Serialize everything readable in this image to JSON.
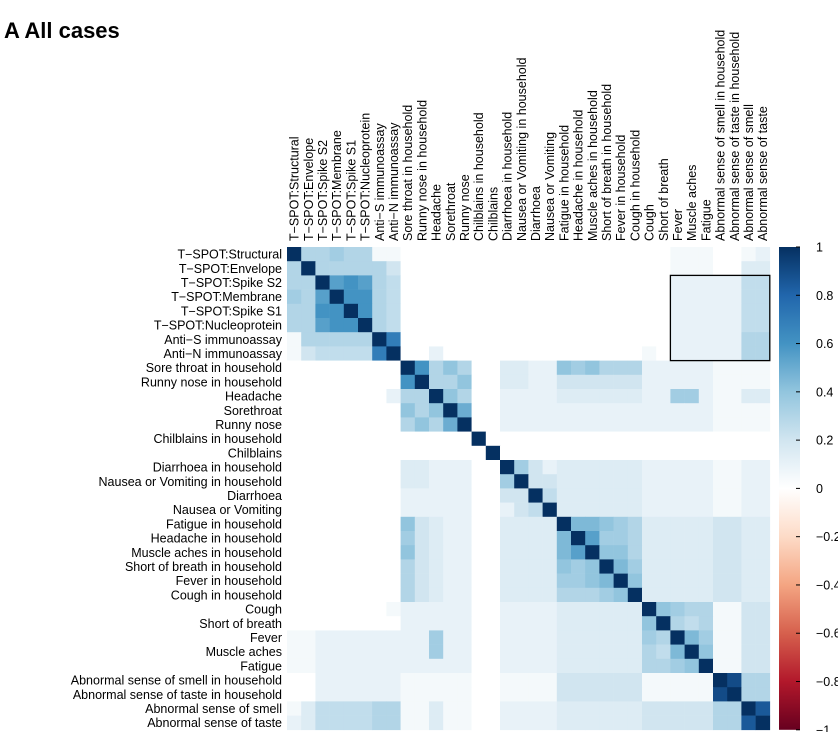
{
  "chart_data": {
    "type": "heatmap",
    "title": "A All cases",
    "labels": [
      "T−SPOT:Structural",
      "T−SPOT:Envelope",
      "T−SPOT:Spike S2",
      "T−SPOT:Membrane",
      "T−SPOT:Spike S1",
      "T−SPOT:Nucleoprotein",
      "Anti−S immunoassay",
      "Anti−N immunoassay",
      "Sore throat in household",
      "Runny nose in household",
      "Headache",
      "Sorethroat",
      "Runny nose",
      "Chilblains in household",
      "Chilblains",
      "Diarrhoea in household",
      "Nausea or Vomiting in household",
      "Diarrhoea",
      "Nausea or Vomiting",
      "Fatigue in household",
      "Headache in household",
      "Muscle aches in household",
      "Short of breath in household",
      "Fever in household",
      "Cough in household",
      "Cough",
      "Short of breath",
      "Fever",
      "Muscle aches",
      "Fatigue",
      "Abnormal sense of smell in household",
      "Abnormal sense of taste in household",
      "Abnormal sense of smell",
      "Abnormal sense of taste"
    ],
    "matrix": [
      [
        1,
        0.3,
        0.3,
        0.35,
        0.3,
        0.3,
        0.05,
        0.05,
        0,
        0,
        0,
        0,
        0,
        0,
        0,
        0,
        0,
        0,
        0,
        0,
        0,
        0,
        0,
        0,
        0,
        0,
        0,
        0.05,
        0.05,
        0.05,
        0,
        0,
        0.05,
        0.1
      ],
      [
        0.3,
        1,
        0.3,
        0.3,
        0.3,
        0.3,
        0.3,
        0.2,
        0,
        0,
        0,
        0,
        0,
        0,
        0,
        0,
        0,
        0,
        0,
        0,
        0,
        0,
        0,
        0,
        0,
        0,
        0,
        0.05,
        0.05,
        0.05,
        0,
        0,
        0.15,
        0.15
      ],
      [
        0.3,
        0.3,
        1,
        0.55,
        0.6,
        0.55,
        0.3,
        0.25,
        0,
        0,
        0,
        0,
        0,
        0,
        0,
        0,
        0,
        0,
        0,
        0,
        0,
        0,
        0,
        0,
        0,
        0,
        0,
        0.1,
        0.1,
        0.1,
        0.1,
        0.1,
        0.25,
        0.25
      ],
      [
        0.35,
        0.3,
        0.55,
        1,
        0.6,
        0.6,
        0.3,
        0.25,
        0,
        0,
        0,
        0,
        0,
        0,
        0,
        0,
        0,
        0,
        0,
        0,
        0,
        0,
        0,
        0,
        0,
        0,
        0,
        0.1,
        0.1,
        0.1,
        0.1,
        0.1,
        0.25,
        0.25
      ],
      [
        0.3,
        0.3,
        0.6,
        0.6,
        1,
        0.6,
        0.3,
        0.25,
        0,
        0,
        0,
        0,
        0,
        0,
        0,
        0,
        0,
        0,
        0,
        0,
        0,
        0,
        0,
        0,
        0,
        0,
        0,
        0.1,
        0.1,
        0.1,
        0.1,
        0.1,
        0.25,
        0.25
      ],
      [
        0.3,
        0.3,
        0.55,
        0.6,
        0.6,
        1,
        0.3,
        0.25,
        0,
        0,
        0,
        0,
        0,
        0,
        0,
        0,
        0,
        0,
        0,
        0,
        0,
        0,
        0,
        0,
        0,
        0,
        0,
        0.1,
        0.1,
        0.1,
        0.1,
        0.1,
        0.25,
        0.25
      ],
      [
        0.05,
        0.3,
        0.3,
        0.3,
        0.3,
        0.3,
        1,
        0.7,
        0,
        0,
        0,
        0,
        0,
        0,
        0,
        0,
        0,
        0,
        0,
        0,
        0,
        0,
        0,
        0,
        0,
        0,
        0,
        0.1,
        0.1,
        0.1,
        0.1,
        0.1,
        0.3,
        0.3
      ],
      [
        0.05,
        0.2,
        0.25,
        0.25,
        0.25,
        0.25,
        0.7,
        1,
        0,
        0,
        0.1,
        0,
        0,
        0,
        0,
        0,
        0,
        0,
        0,
        0,
        0,
        0,
        0,
        0,
        0,
        0.05,
        0,
        0.1,
        0.1,
        0.1,
        0.1,
        0.1,
        0.3,
        0.3
      ],
      [
        0,
        0,
        0,
        0,
        0,
        0,
        0,
        0,
        1,
        0.6,
        0.3,
        0.4,
        0.3,
        0,
        0,
        0.15,
        0.15,
        0.1,
        0.1,
        0.4,
        0.35,
        0.4,
        0.3,
        0.3,
        0.3,
        0.1,
        0.1,
        0.1,
        0.1,
        0.1,
        0.05,
        0.05,
        0.05,
        0.05
      ],
      [
        0,
        0,
        0,
        0,
        0,
        0,
        0,
        0,
        0.6,
        1,
        0.3,
        0.3,
        0.4,
        0,
        0,
        0.15,
        0.15,
        0.1,
        0.1,
        0.2,
        0.2,
        0.2,
        0.2,
        0.2,
        0.2,
        0.1,
        0.1,
        0.1,
        0.1,
        0.1,
        0.05,
        0.05,
        0.05,
        0.05
      ],
      [
        0,
        0,
        0,
        0,
        0,
        0,
        0,
        0.1,
        0.3,
        0.3,
        1,
        0.4,
        0.3,
        0,
        0,
        0.1,
        0.1,
        0.1,
        0.1,
        0.15,
        0.15,
        0.15,
        0.15,
        0.15,
        0.15,
        0.1,
        0.1,
        0.35,
        0.35,
        0.1,
        0.05,
        0.05,
        0.15,
        0.15
      ],
      [
        0,
        0,
        0,
        0,
        0,
        0,
        0,
        0,
        0.4,
        0.3,
        0.4,
        1,
        0.5,
        0,
        0,
        0.1,
        0.1,
        0.1,
        0.1,
        0.1,
        0.1,
        0.1,
        0.1,
        0.1,
        0.1,
        0.1,
        0.1,
        0.1,
        0.1,
        0.1,
        0.05,
        0.05,
        0.05,
        0.05
      ],
      [
        0,
        0,
        0,
        0,
        0,
        0,
        0,
        0,
        0.3,
        0.4,
        0.3,
        0.5,
        1,
        0,
        0,
        0.1,
        0.1,
        0.1,
        0.1,
        0.1,
        0.1,
        0.1,
        0.1,
        0.1,
        0.1,
        0.1,
        0.1,
        0.1,
        0.1,
        0.1,
        0.05,
        0.05,
        0.05,
        0.05
      ],
      [
        0,
        0,
        0,
        0,
        0,
        0,
        0,
        0,
        0,
        0,
        0,
        0,
        0,
        1,
        0,
        0,
        0,
        0,
        0,
        0,
        0,
        0,
        0,
        0,
        0,
        0,
        0,
        0,
        0,
        0,
        0,
        0,
        0,
        0
      ],
      [
        0,
        0,
        0,
        0,
        0,
        0,
        0,
        0,
        0,
        0,
        0,
        0,
        0,
        0,
        1,
        0,
        0,
        0,
        0,
        0,
        0,
        0,
        0,
        0,
        0,
        0,
        0,
        0,
        0,
        0,
        0,
        0,
        0,
        0
      ],
      [
        0,
        0,
        0,
        0,
        0,
        0,
        0,
        0,
        0.15,
        0.15,
        0.1,
        0.1,
        0.1,
        0,
        0,
        1,
        0.35,
        0.2,
        0.1,
        0.15,
        0.15,
        0.15,
        0.15,
        0.15,
        0.15,
        0.1,
        0.1,
        0.1,
        0.1,
        0.1,
        0.05,
        0.05,
        0.1,
        0.1
      ],
      [
        0,
        0,
        0,
        0,
        0,
        0,
        0,
        0,
        0.15,
        0.15,
        0.1,
        0.1,
        0.1,
        0,
        0,
        0.35,
        1,
        0.2,
        0.2,
        0.15,
        0.15,
        0.15,
        0.15,
        0.15,
        0.15,
        0.1,
        0.1,
        0.1,
        0.1,
        0.1,
        0.05,
        0.05,
        0.1,
        0.1
      ],
      [
        0,
        0,
        0,
        0,
        0,
        0,
        0,
        0,
        0.1,
        0.1,
        0.1,
        0.1,
        0.1,
        0,
        0,
        0.2,
        0.2,
        1,
        0.25,
        0.15,
        0.15,
        0.15,
        0.15,
        0.15,
        0.15,
        0.1,
        0.1,
        0.1,
        0.1,
        0.1,
        0.05,
        0.05,
        0.1,
        0.1
      ],
      [
        0,
        0,
        0,
        0,
        0,
        0,
        0,
        0,
        0.1,
        0.1,
        0.1,
        0.1,
        0.1,
        0,
        0,
        0.1,
        0.2,
        0.25,
        1,
        0.15,
        0.15,
        0.15,
        0.15,
        0.15,
        0.15,
        0.1,
        0.1,
        0.1,
        0.1,
        0.1,
        0.05,
        0.05,
        0.1,
        0.1
      ],
      [
        0,
        0,
        0,
        0,
        0,
        0,
        0,
        0,
        0.4,
        0.2,
        0.15,
        0.1,
        0.1,
        0,
        0,
        0.15,
        0.15,
        0.15,
        0.15,
        1,
        0.45,
        0.45,
        0.4,
        0.35,
        0.3,
        0.15,
        0.15,
        0.15,
        0.15,
        0.15,
        0.2,
        0.2,
        0.15,
        0.15
      ],
      [
        0,
        0,
        0,
        0,
        0,
        0,
        0,
        0,
        0.35,
        0.2,
        0.15,
        0.1,
        0.1,
        0,
        0,
        0.15,
        0.15,
        0.15,
        0.15,
        0.45,
        1,
        0.55,
        0.35,
        0.35,
        0.3,
        0.15,
        0.15,
        0.15,
        0.15,
        0.15,
        0.2,
        0.2,
        0.15,
        0.15
      ],
      [
        0,
        0,
        0,
        0,
        0,
        0,
        0,
        0,
        0.4,
        0.2,
        0.15,
        0.1,
        0.1,
        0,
        0,
        0.15,
        0.15,
        0.15,
        0.15,
        0.45,
        0.55,
        1,
        0.4,
        0.4,
        0.3,
        0.15,
        0.15,
        0.15,
        0.15,
        0.15,
        0.2,
        0.2,
        0.15,
        0.15
      ],
      [
        0,
        0,
        0,
        0,
        0,
        0,
        0,
        0,
        0.3,
        0.2,
        0.15,
        0.1,
        0.1,
        0,
        0,
        0.15,
        0.15,
        0.15,
        0.15,
        0.4,
        0.35,
        0.4,
        1,
        0.45,
        0.35,
        0.15,
        0.15,
        0.15,
        0.15,
        0.15,
        0.2,
        0.2,
        0.15,
        0.15
      ],
      [
        0,
        0,
        0,
        0,
        0,
        0,
        0,
        0,
        0.3,
        0.2,
        0.15,
        0.1,
        0.1,
        0,
        0,
        0.15,
        0.15,
        0.15,
        0.15,
        0.35,
        0.35,
        0.4,
        0.45,
        1,
        0.4,
        0.15,
        0.15,
        0.15,
        0.15,
        0.15,
        0.2,
        0.2,
        0.15,
        0.15
      ],
      [
        0,
        0,
        0,
        0,
        0,
        0,
        0,
        0,
        0.3,
        0.2,
        0.15,
        0.1,
        0.1,
        0,
        0,
        0.15,
        0.15,
        0.15,
        0.15,
        0.3,
        0.3,
        0.3,
        0.35,
        0.4,
        1,
        0.15,
        0.15,
        0.15,
        0.15,
        0.15,
        0.2,
        0.2,
        0.15,
        0.15
      ],
      [
        0,
        0,
        0,
        0,
        0,
        0,
        0,
        0.05,
        0.1,
        0.1,
        0.1,
        0.1,
        0.1,
        0,
        0,
        0.1,
        0.1,
        0.1,
        0.1,
        0.15,
        0.15,
        0.15,
        0.15,
        0.15,
        0.15,
        1,
        0.4,
        0.35,
        0.3,
        0.3,
        0.05,
        0.05,
        0.2,
        0.2
      ],
      [
        0,
        0,
        0,
        0,
        0,
        0,
        0,
        0,
        0.1,
        0.1,
        0.1,
        0.1,
        0.1,
        0,
        0,
        0.1,
        0.1,
        0.1,
        0.1,
        0.15,
        0.15,
        0.15,
        0.15,
        0.15,
        0.15,
        0.4,
        1,
        0.3,
        0.25,
        0.3,
        0.05,
        0.05,
        0.2,
        0.2
      ],
      [
        0.05,
        0.05,
        0.1,
        0.1,
        0.1,
        0.1,
        0.1,
        0.1,
        0.1,
        0.1,
        0.35,
        0.1,
        0.1,
        0,
        0,
        0.1,
        0.1,
        0.1,
        0.1,
        0.15,
        0.15,
        0.15,
        0.15,
        0.15,
        0.15,
        0.35,
        0.3,
        1,
        0.45,
        0.35,
        0.05,
        0.05,
        0.2,
        0.2
      ],
      [
        0.05,
        0.05,
        0.1,
        0.1,
        0.1,
        0.1,
        0.1,
        0.1,
        0.1,
        0.1,
        0.35,
        0.1,
        0.1,
        0,
        0,
        0.1,
        0.1,
        0.1,
        0.1,
        0.15,
        0.15,
        0.15,
        0.15,
        0.15,
        0.15,
        0.3,
        0.25,
        0.45,
        1,
        0.4,
        0.05,
        0.05,
        0.2,
        0.2
      ],
      [
        0.05,
        0.05,
        0.1,
        0.1,
        0.1,
        0.1,
        0.1,
        0.1,
        0.1,
        0.1,
        0.1,
        0.1,
        0.1,
        0,
        0,
        0.1,
        0.1,
        0.1,
        0.1,
        0.15,
        0.15,
        0.15,
        0.15,
        0.15,
        0.15,
        0.3,
        0.3,
        0.35,
        0.4,
        1,
        0.05,
        0.05,
        0.2,
        0.2
      ],
      [
        0,
        0,
        0.1,
        0.1,
        0.1,
        0.1,
        0.1,
        0.1,
        0.05,
        0.05,
        0.05,
        0.05,
        0.05,
        0,
        0,
        0.05,
        0.05,
        0.05,
        0.05,
        0.2,
        0.2,
        0.2,
        0.2,
        0.2,
        0.2,
        0.05,
        0.05,
        0.05,
        0.05,
        0.05,
        1,
        0.9,
        0.3,
        0.3
      ],
      [
        0,
        0,
        0.1,
        0.1,
        0.1,
        0.1,
        0.1,
        0.1,
        0.05,
        0.05,
        0.05,
        0.05,
        0.05,
        0,
        0,
        0.05,
        0.05,
        0.05,
        0.05,
        0.2,
        0.2,
        0.2,
        0.2,
        0.2,
        0.2,
        0.05,
        0.05,
        0.05,
        0.05,
        0.05,
        0.9,
        1,
        0.3,
        0.3
      ],
      [
        0.05,
        0.15,
        0.25,
        0.25,
        0.25,
        0.25,
        0.3,
        0.3,
        0.05,
        0.05,
        0.15,
        0.05,
        0.05,
        0,
        0,
        0.1,
        0.1,
        0.1,
        0.1,
        0.15,
        0.15,
        0.15,
        0.15,
        0.15,
        0.15,
        0.2,
        0.2,
        0.2,
        0.2,
        0.2,
        0.3,
        0.3,
        1,
        0.85
      ],
      [
        0.1,
        0.15,
        0.25,
        0.25,
        0.25,
        0.25,
        0.3,
        0.3,
        0.05,
        0.05,
        0.15,
        0.05,
        0.05,
        0,
        0,
        0.1,
        0.1,
        0.1,
        0.1,
        0.15,
        0.15,
        0.15,
        0.15,
        0.15,
        0.15,
        0.2,
        0.2,
        0.2,
        0.2,
        0.2,
        0.3,
        0.3,
        0.85,
        1
      ]
    ],
    "clim": [
      -1,
      1
    ],
    "cticks": [
      {
        "value": -1,
        "label": "−1"
      },
      {
        "value": -0.8,
        "label": "−0.8"
      },
      {
        "value": -0.6,
        "label": "−0.6"
      },
      {
        "value": -0.4,
        "label": "−0.4"
      },
      {
        "value": -0.2,
        "label": "−0.2"
      },
      0,
      0.2,
      0.4,
      0.6,
      0.8,
      1
    ],
    "colors": [
      "#67001f",
      "#b2182b",
      "#d6604d",
      "#f4a582",
      "#fddbc7",
      "#ffffff",
      "#d1e5f0",
      "#92c5de",
      "#4393c3",
      "#2166ac",
      "#053061"
    ]
  }
}
